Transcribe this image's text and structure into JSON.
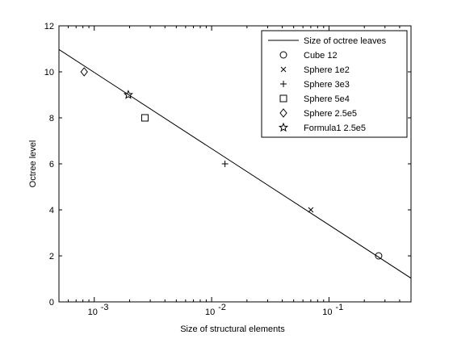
{
  "chart_data": {
    "type": "scatter",
    "xlabel": "Size of structural elements",
    "ylabel": "Octree level",
    "xscale": "log",
    "xlim": [
      0.0005,
      0.5
    ],
    "ylim": [
      0,
      12
    ],
    "y_ticks": [
      0,
      2,
      4,
      6,
      8,
      10,
      12
    ],
    "x_ticks": [
      {
        "value": 0.001,
        "base": "10",
        "exp": "-3"
      },
      {
        "value": 0.01,
        "base": "10",
        "exp": "-2"
      },
      {
        "value": 0.1,
        "base": "10",
        "exp": "-1"
      }
    ],
    "grid": false,
    "legend_position": "top-right",
    "line": {
      "name": "Size of octree leaves",
      "x": [
        0.0005,
        0.5
      ],
      "y": [
        10.97,
        1.03
      ]
    },
    "series": [
      {
        "name": "Cube 12",
        "marker": "circle",
        "x": [
          0.265
        ],
        "y": [
          2
        ]
      },
      {
        "name": "Sphere 1e2",
        "marker": "x",
        "x": [
          0.07
        ],
        "y": [
          4
        ]
      },
      {
        "name": "Sphere 3e3",
        "marker": "plus",
        "x": [
          0.013
        ],
        "y": [
          6
        ]
      },
      {
        "name": "Sphere 5e4",
        "marker": "square",
        "x": [
          0.0027
        ],
        "y": [
          8
        ]
      },
      {
        "name": "Sphere 2.5e5",
        "marker": "diamond",
        "x": [
          0.00082
        ],
        "y": [
          10
        ]
      },
      {
        "name": "Formula1 2.5e5",
        "marker": "star",
        "x": [
          0.00195
        ],
        "y": [
          9
        ]
      }
    ]
  }
}
